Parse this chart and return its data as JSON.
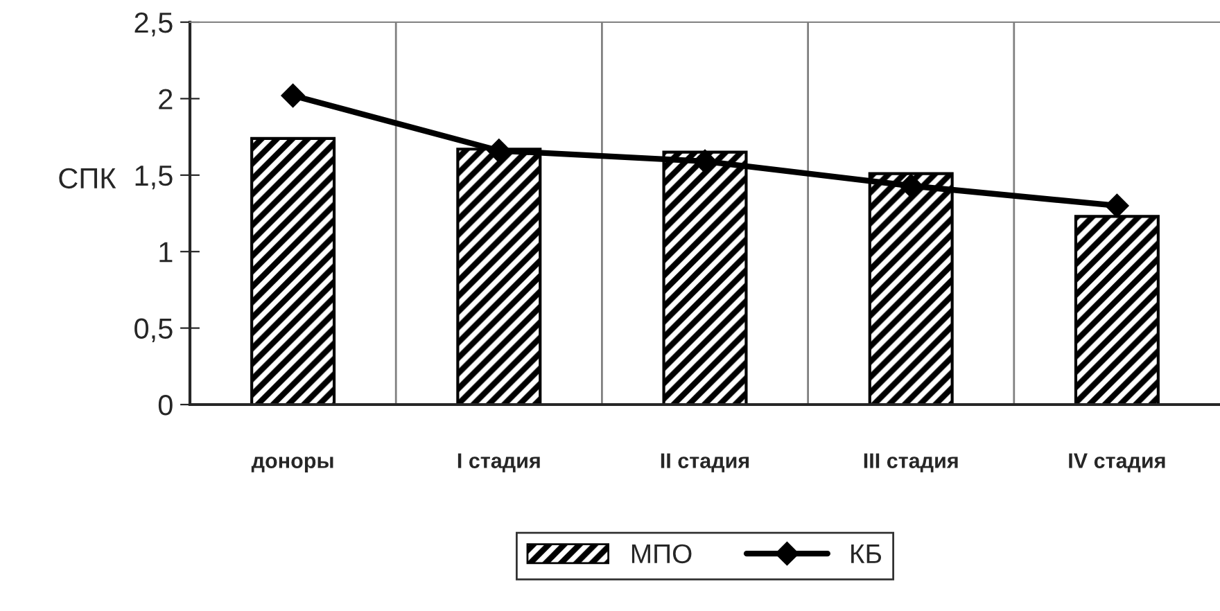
{
  "chart_data": {
    "type": "bar",
    "ylabel": "СПК",
    "categories": [
      "доноры",
      "I стадия",
      "II стадия",
      "III стадия",
      "IV стадия"
    ],
    "series": [
      {
        "name": "МПО",
        "color": "#000000",
        "values": [
          1.74,
          1.67,
          1.65,
          1.51,
          1.23
        ]
      },
      {
        "name": "КБ",
        "type": "line",
        "color": "#000000",
        "marker": "diamond",
        "values": [
          2.02,
          1.66,
          1.59,
          1.43,
          1.3
        ]
      }
    ],
    "ylim": [
      0,
      2.5
    ],
    "yticks": [
      {
        "value": 0,
        "label": "0"
      },
      {
        "value": 0.5,
        "label": "0,5"
      },
      {
        "value": 1,
        "label": "1"
      },
      {
        "value": 1.5,
        "label": "1,5"
      },
      {
        "value": 2,
        "label": "2"
      },
      {
        "value": 2.5,
        "label": "2,5"
      }
    ],
    "grid": "x",
    "legend": "bottom"
  }
}
